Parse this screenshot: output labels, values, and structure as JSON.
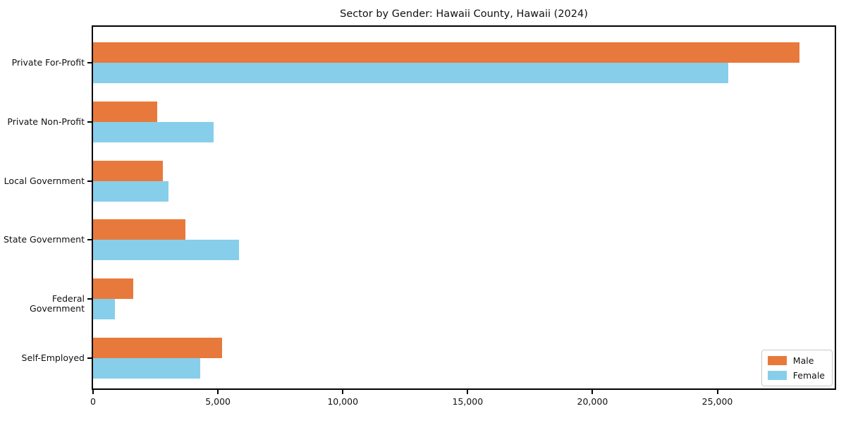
{
  "title": "Sector by Gender: Hawaii County, Hawaii (2024)",
  "colors": {
    "male": "#E8793C",
    "female": "#87CEEB",
    "spine": "#000000",
    "legend_border": "#C9C9C9",
    "background": "#FFFFFF",
    "text": "#111111"
  },
  "legend": {
    "position": "lower right",
    "items": [
      {
        "label": "Male",
        "color": "#E8793C"
      },
      {
        "label": "Female",
        "color": "#87CEEB"
      }
    ]
  },
  "chart_data": {
    "type": "bar",
    "orientation": "horizontal",
    "title": "Sector by Gender: Hawaii County, Hawaii (2024)",
    "xlabel": "",
    "ylabel": "",
    "categories": [
      "Private For-Profit",
      "Private Non-Profit",
      "Local Government",
      "State Government",
      "Federal Government",
      "Self-Employed"
    ],
    "series": [
      {
        "name": "Male",
        "color": "#E8793C",
        "values": [
          28290,
          2560,
          2790,
          3690,
          1600,
          5180
        ]
      },
      {
        "name": "Female",
        "color": "#87CEEB",
        "values": [
          25450,
          4840,
          3010,
          5850,
          870,
          4280
        ]
      }
    ],
    "xlim": [
      0,
      29700
    ],
    "xticks": [
      0,
      5000,
      10000,
      15000,
      20000,
      25000
    ],
    "xtick_labels": [
      "0",
      "5,000",
      "10,000",
      "15,000",
      "20,000",
      "25,000"
    ],
    "grid": false,
    "legend_position": "lower right"
  }
}
